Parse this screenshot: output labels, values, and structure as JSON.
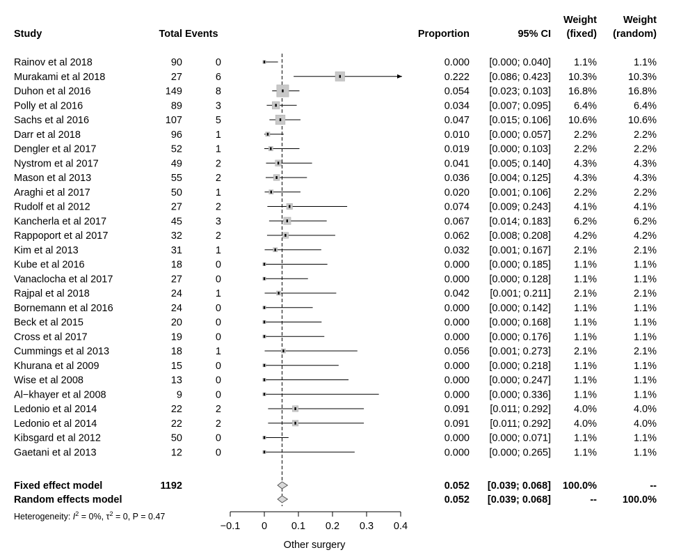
{
  "chart_data": {
    "type": "forest",
    "xlabel": "Other surgery",
    "xlim": [
      -0.1,
      0.4
    ],
    "xticks": [
      -0.1,
      0,
      0.1,
      0.2,
      0.3,
      0.4
    ],
    "xtick_labels": [
      "−0.1",
      "0",
      "0.1",
      "0.2",
      "0.3",
      "0.4"
    ],
    "columns": {
      "study": "Study",
      "total": "Total",
      "events": "Events",
      "proportion": "Proportion",
      "ci": "95% CI",
      "weight_fixed_1": "Weight",
      "weight_fixed_2": "(fixed)",
      "weight_random_1": "Weight",
      "weight_random_2": "(random)"
    },
    "studies": [
      {
        "study": "Rainov et al 2018",
        "total": "90",
        "events": "0",
        "prop": 0.0,
        "lo": 0.0,
        "hi": 0.04,
        "prop_text": "0.000",
        "ci_text": "[0.000; 0.040]",
        "wf": "1.1%",
        "wr": "1.1%",
        "w": 1.1
      },
      {
        "study": "Murakami et al 2018",
        "total": "27",
        "events": "6",
        "prop": 0.222,
        "lo": 0.086,
        "hi": 0.423,
        "prop_text": "0.222",
        "ci_text": "[0.086; 0.423]",
        "wf": "10.3%",
        "wr": "10.3%",
        "w": 10.3
      },
      {
        "study": "Duhon et al 2016",
        "total": "149",
        "events": "8",
        "prop": 0.054,
        "lo": 0.023,
        "hi": 0.103,
        "prop_text": "0.054",
        "ci_text": "[0.023; 0.103]",
        "wf": "16.8%",
        "wr": "16.8%",
        "w": 16.8
      },
      {
        "study": "Polly et al 2016",
        "total": "89",
        "events": "3",
        "prop": 0.034,
        "lo": 0.007,
        "hi": 0.095,
        "prop_text": "0.034",
        "ci_text": "[0.007; 0.095]",
        "wf": "6.4%",
        "wr": "6.4%",
        "w": 6.4
      },
      {
        "study": "Sachs et al 2016",
        "total": "107",
        "events": "5",
        "prop": 0.047,
        "lo": 0.015,
        "hi": 0.106,
        "prop_text": "0.047",
        "ci_text": "[0.015; 0.106]",
        "wf": "10.6%",
        "wr": "10.6%",
        "w": 10.6
      },
      {
        "study": "Darr et al 2018",
        "total": "96",
        "events": "1",
        "prop": 0.01,
        "lo": 0.0,
        "hi": 0.057,
        "prop_text": "0.010",
        "ci_text": "[0.000; 0.057]",
        "wf": "2.2%",
        "wr": "2.2%",
        "w": 2.2
      },
      {
        "study": "Dengler et al 2017",
        "total": "52",
        "events": "1",
        "prop": 0.019,
        "lo": 0.0,
        "hi": 0.103,
        "prop_text": "0.019",
        "ci_text": "[0.000; 0.103]",
        "wf": "2.2%",
        "wr": "2.2%",
        "w": 2.2
      },
      {
        "study": "Nystrom et al 2017",
        "total": "49",
        "events": "2",
        "prop": 0.041,
        "lo": 0.005,
        "hi": 0.14,
        "prop_text": "0.041",
        "ci_text": "[0.005; 0.140]",
        "wf": "4.3%",
        "wr": "4.3%",
        "w": 4.3
      },
      {
        "study": "Mason et al 2013",
        "total": "55",
        "events": "2",
        "prop": 0.036,
        "lo": 0.004,
        "hi": 0.125,
        "prop_text": "0.036",
        "ci_text": "[0.004; 0.125]",
        "wf": "4.3%",
        "wr": "4.3%",
        "w": 4.3
      },
      {
        "study": "Araghi et al 2017",
        "total": "50",
        "events": "1",
        "prop": 0.02,
        "lo": 0.001,
        "hi": 0.106,
        "prop_text": "0.020",
        "ci_text": "[0.001; 0.106]",
        "wf": "2.2%",
        "wr": "2.2%",
        "w": 2.2
      },
      {
        "study": "Rudolf et al 2012",
        "total": "27",
        "events": "2",
        "prop": 0.074,
        "lo": 0.009,
        "hi": 0.243,
        "prop_text": "0.074",
        "ci_text": "[0.009; 0.243]",
        "wf": "4.1%",
        "wr": "4.1%",
        "w": 4.1
      },
      {
        "study": "Kancherla et al 2017",
        "total": "45",
        "events": "3",
        "prop": 0.067,
        "lo": 0.014,
        "hi": 0.183,
        "prop_text": "0.067",
        "ci_text": "[0.014; 0.183]",
        "wf": "6.2%",
        "wr": "6.2%",
        "w": 6.2
      },
      {
        "study": "Rappoport et al 2017",
        "total": "32",
        "events": "2",
        "prop": 0.062,
        "lo": 0.008,
        "hi": 0.208,
        "prop_text": "0.062",
        "ci_text": "[0.008; 0.208]",
        "wf": "4.2%",
        "wr": "4.2%",
        "w": 4.2
      },
      {
        "study": "Kim et al 2013",
        "total": "31",
        "events": "1",
        "prop": 0.032,
        "lo": 0.001,
        "hi": 0.167,
        "prop_text": "0.032",
        "ci_text": "[0.001; 0.167]",
        "wf": "2.1%",
        "wr": "2.1%",
        "w": 2.1
      },
      {
        "study": "Kube et al 2016",
        "total": "18",
        "events": "0",
        "prop": 0.0,
        "lo": 0.0,
        "hi": 0.185,
        "prop_text": "0.000",
        "ci_text": "[0.000; 0.185]",
        "wf": "1.1%",
        "wr": "1.1%",
        "w": 1.1
      },
      {
        "study": "Vanaclocha et al 2017",
        "total": "27",
        "events": "0",
        "prop": 0.0,
        "lo": 0.0,
        "hi": 0.128,
        "prop_text": "0.000",
        "ci_text": "[0.000; 0.128]",
        "wf": "1.1%",
        "wr": "1.1%",
        "w": 1.1
      },
      {
        "study": "Rajpal et al 2018",
        "total": "24",
        "events": "1",
        "prop": 0.042,
        "lo": 0.001,
        "hi": 0.211,
        "prop_text": "0.042",
        "ci_text": "[0.001; 0.211]",
        "wf": "2.1%",
        "wr": "2.1%",
        "w": 2.1
      },
      {
        "study": "Bornemann et al 2016",
        "total": "24",
        "events": "0",
        "prop": 0.0,
        "lo": 0.0,
        "hi": 0.142,
        "prop_text": "0.000",
        "ci_text": "[0.000; 0.142]",
        "wf": "1.1%",
        "wr": "1.1%",
        "w": 1.1
      },
      {
        "study": "Beck et al 2015",
        "total": "20",
        "events": "0",
        "prop": 0.0,
        "lo": 0.0,
        "hi": 0.168,
        "prop_text": "0.000",
        "ci_text": "[0.000; 0.168]",
        "wf": "1.1%",
        "wr": "1.1%",
        "w": 1.1
      },
      {
        "study": "Cross et al 2017",
        "total": "19",
        "events": "0",
        "prop": 0.0,
        "lo": 0.0,
        "hi": 0.176,
        "prop_text": "0.000",
        "ci_text": "[0.000; 0.176]",
        "wf": "1.1%",
        "wr": "1.1%",
        "w": 1.1
      },
      {
        "study": "Cummings et al 2013",
        "total": "18",
        "events": "1",
        "prop": 0.056,
        "lo": 0.001,
        "hi": 0.273,
        "prop_text": "0.056",
        "ci_text": "[0.001; 0.273]",
        "wf": "2.1%",
        "wr": "2.1%",
        "w": 2.1
      },
      {
        "study": "Khurana et al 2009",
        "total": "15",
        "events": "0",
        "prop": 0.0,
        "lo": 0.0,
        "hi": 0.218,
        "prop_text": "0.000",
        "ci_text": "[0.000; 0.218]",
        "wf": "1.1%",
        "wr": "1.1%",
        "w": 1.1
      },
      {
        "study": "Wise et al 2008",
        "total": "13",
        "events": "0",
        "prop": 0.0,
        "lo": 0.0,
        "hi": 0.247,
        "prop_text": "0.000",
        "ci_text": "[0.000; 0.247]",
        "wf": "1.1%",
        "wr": "1.1%",
        "w": 1.1
      },
      {
        "study": "Al−khayer et al 2008",
        "total": "9",
        "events": "0",
        "prop": 0.0,
        "lo": 0.0,
        "hi": 0.336,
        "prop_text": "0.000",
        "ci_text": "[0.000; 0.336]",
        "wf": "1.1%",
        "wr": "1.1%",
        "w": 1.1
      },
      {
        "study": "Ledonio et al 2014",
        "total": "22",
        "events": "2",
        "prop": 0.091,
        "lo": 0.011,
        "hi": 0.292,
        "prop_text": "0.091",
        "ci_text": "[0.011; 0.292]",
        "wf": "4.0%",
        "wr": "4.0%",
        "w": 4.0
      },
      {
        "study": "Ledonio et al 2014",
        "total": "22",
        "events": "2",
        "prop": 0.091,
        "lo": 0.011,
        "hi": 0.292,
        "prop_text": "0.091",
        "ci_text": "[0.011; 0.292]",
        "wf": "4.0%",
        "wr": "4.0%",
        "w": 4.0
      },
      {
        "study": "Kibsgard et al 2012",
        "total": "50",
        "events": "0",
        "prop": 0.0,
        "lo": 0.0,
        "hi": 0.071,
        "prop_text": "0.000",
        "ci_text": "[0.000; 0.071]",
        "wf": "1.1%",
        "wr": "1.1%",
        "w": 1.1
      },
      {
        "study": "Gaetani et al 2013",
        "total": "12",
        "events": "0",
        "prop": 0.0,
        "lo": 0.0,
        "hi": 0.265,
        "prop_text": "0.000",
        "ci_text": "[0.000; 0.265]",
        "wf": "1.1%",
        "wr": "1.1%",
        "w": 1.1
      }
    ],
    "summary": [
      {
        "label": "Fixed effect model",
        "total": "1192",
        "prop": 0.052,
        "lo": 0.039,
        "hi": 0.068,
        "prop_text": "0.052",
        "ci_text": "[0.039; 0.068]",
        "wf": "100.0%",
        "wr": "--"
      },
      {
        "label": "Random effects model",
        "total": "",
        "prop": 0.052,
        "lo": 0.039,
        "hi": 0.068,
        "prop_text": "0.052",
        "ci_text": "[0.039; 0.068]",
        "wf": "--",
        "wr": "100.0%"
      }
    ],
    "heterogeneity": {
      "prefix": "Heterogeneity: ",
      "i2_symbol": "I",
      "i2_sup": "2",
      "i2_value": " = 0%, ",
      "tau2_symbol": "τ",
      "tau2_sup": "2",
      "tau2_value": " = 0, P = 0.47"
    },
    "reference_line": 0.052,
    "colors": {
      "box_fill": "#c8c8c8",
      "box_stroke": "#a8a8a8",
      "diamond_fill": "#d9d9d9",
      "line": "#000000"
    }
  }
}
